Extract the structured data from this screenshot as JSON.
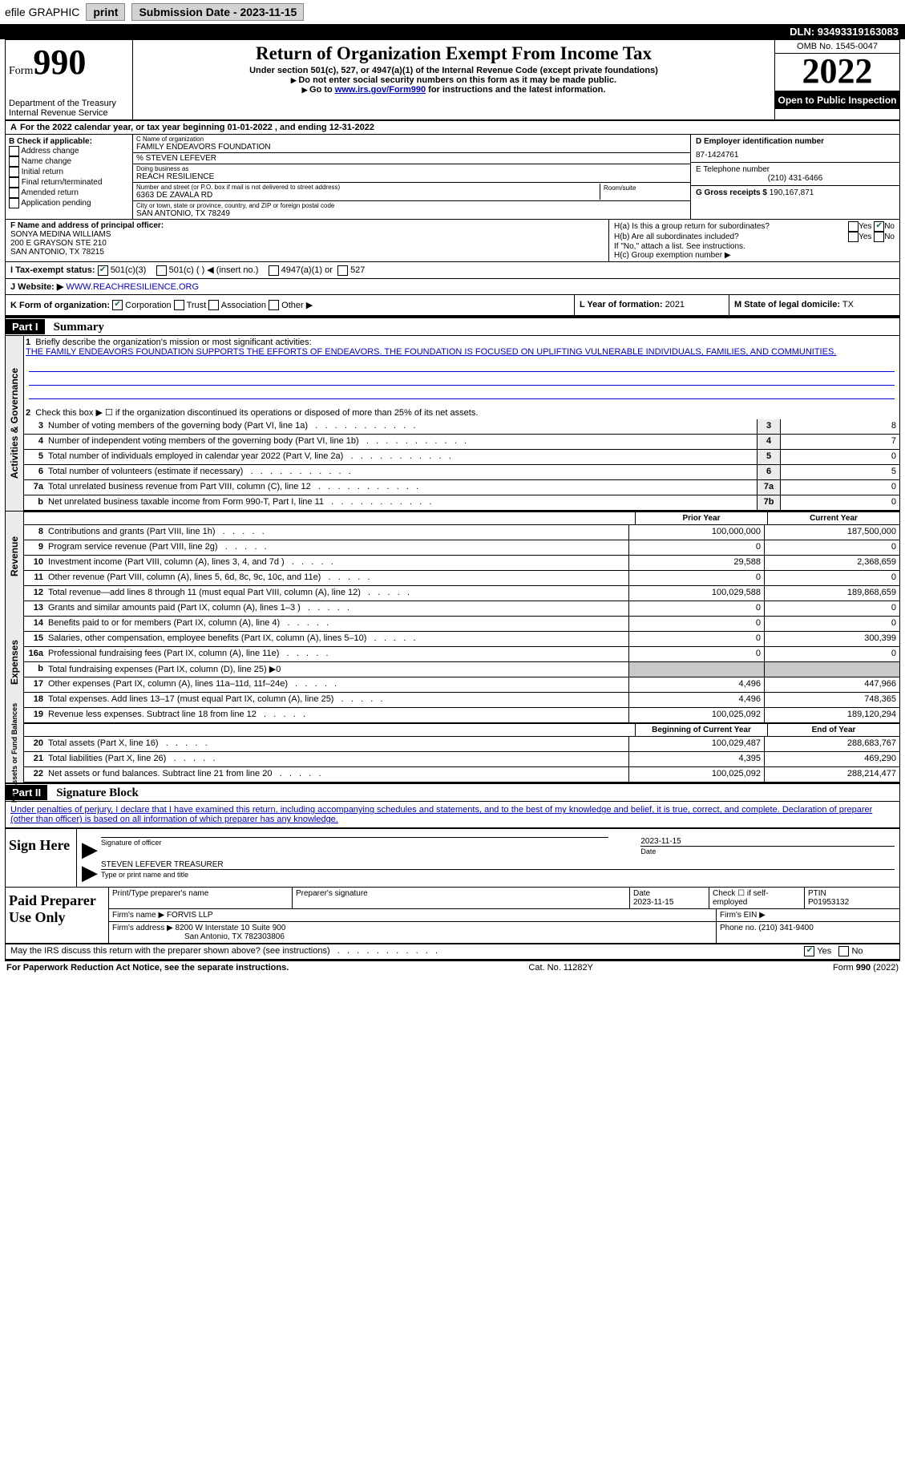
{
  "topbar": {
    "efile": "efile GRAPHIC",
    "print": "print",
    "submission": "Submission Date - 2023-11-15",
    "dln": "DLN: 93493319163083"
  },
  "header": {
    "form_word": "Form",
    "form_no": "990",
    "title": "Return of Organization Exempt From Income Tax",
    "sub1": "Under section 501(c), 527, or 4947(a)(1) of the Internal Revenue Code (except private foundations)",
    "sub2": "Do not enter social security numbers on this form as it may be made public.",
    "sub3_pre": "Go to ",
    "sub3_link": "www.irs.gov/Form990",
    "sub3_post": " for instructions and the latest information.",
    "dept": "Department of the Treasury\nInternal Revenue Service",
    "omb": "OMB No. 1545-0047",
    "year": "2022",
    "otp": "Open to Public Inspection"
  },
  "a_row": "For the 2022 calendar year, or tax year beginning 01-01-2022    , and ending 12-31-2022",
  "b": {
    "label": "B Check if applicable:",
    "opts": [
      "Address change",
      "Name change",
      "Initial return",
      "Final return/terminated",
      "Amended return",
      "Application pending"
    ]
  },
  "c": {
    "name_lbl": "C Name of organization",
    "name": "FAMILY ENDEAVORS FOUNDATION",
    "care": "% STEVEN LEFEVER",
    "dba_lbl": "Doing business as",
    "dba": "REACH RESILIENCE",
    "addr_lbl": "Number and street (or P.O. box if mail is not delivered to street address)",
    "addr": "6363 DE ZAVALA RD",
    "room_lbl": "Room/suite",
    "city_lbl": "City or town, state or province, country, and ZIP or foreign postal code",
    "city": "SAN ANTONIO, TX  78249"
  },
  "d": {
    "ein_lbl": "D Employer identification number",
    "ein": "87-1424761",
    "tel_lbl": "E Telephone number",
    "tel": "(210) 431-6466",
    "gross_lbl": "G Gross receipts $",
    "gross": "190,167,871"
  },
  "f": {
    "lbl": "F Name and address of principal officer:",
    "name": "SONYA MEDINA WILLIAMS",
    "addr1": "200 E GRAYSON STE 210",
    "addr2": "SAN ANTONIO, TX  78215"
  },
  "h": {
    "a_lbl": "H(a)  Is this a group return for subordinates?",
    "b_lbl": "H(b)  Are all subordinates included?",
    "note": "If \"No,\" attach a list. See instructions.",
    "c_lbl": "H(c)  Group exemption number ▶"
  },
  "i": {
    "lbl": "I   Tax-exempt status:",
    "o1": "501(c)(3)",
    "o2": "501(c) (  ) ◀ (insert no.)",
    "o3": "4947(a)(1) or",
    "o4": "527"
  },
  "j": {
    "lbl": "J   Website: ▶",
    "val": "WWW.REACHRESILIENCE.ORG"
  },
  "k": {
    "lbl": "K Form of organization:",
    "corp": "Corporation",
    "trust": "Trust",
    "assoc": "Association",
    "other": "Other ▶",
    "l_lbl": "L Year of formation:",
    "l_val": "2021",
    "m_lbl": "M State of legal domicile:",
    "m_val": "TX"
  },
  "part1": {
    "hdr": "Part I",
    "title": "Summary",
    "l1_lbl": "Briefly describe the organization's mission or most significant activities:",
    "l1_txt": "THE FAMILY ENDEAVORS FOUNDATION SUPPORTS THE EFFORTS OF ENDEAVORS. THE FOUNDATION IS FOCUSED ON UPLIFTING VULNERABLE INDIVIDUALS, FAMILIES, AND COMMUNITIES.",
    "l2": "Check this box ▶ ☐ if the organization discontinued its operations or disposed of more than 25% of its net assets.",
    "rows_a": [
      {
        "n": "3",
        "t": "Number of voting members of the governing body (Part VI, line 1a)",
        "box": "3",
        "v": "8"
      },
      {
        "n": "4",
        "t": "Number of independent voting members of the governing body (Part VI, line 1b)",
        "box": "4",
        "v": "7"
      },
      {
        "n": "5",
        "t": "Total number of individuals employed in calendar year 2022 (Part V, line 2a)",
        "box": "5",
        "v": "0"
      },
      {
        "n": "6",
        "t": "Total number of volunteers (estimate if necessary)",
        "box": "6",
        "v": "5"
      },
      {
        "n": "7a",
        "t": "Total unrelated business revenue from Part VIII, column (C), line 12",
        "box": "7a",
        "v": "0"
      },
      {
        "n": "b",
        "t": "Net unrelated business taxable income from Form 990-T, Part I, line 11",
        "box": "7b",
        "v": "0"
      }
    ],
    "hdr_prior": "Prior Year",
    "hdr_curr": "Current Year",
    "rev": [
      {
        "n": "8",
        "t": "Contributions and grants (Part VIII, line 1h)",
        "p": "100,000,000",
        "c": "187,500,000"
      },
      {
        "n": "9",
        "t": "Program service revenue (Part VIII, line 2g)",
        "p": "0",
        "c": "0"
      },
      {
        "n": "10",
        "t": "Investment income (Part VIII, column (A), lines 3, 4, and 7d )",
        "p": "29,588",
        "c": "2,368,659"
      },
      {
        "n": "11",
        "t": "Other revenue (Part VIII, column (A), lines 5, 6d, 8c, 9c, 10c, and 11e)",
        "p": "0",
        "c": "0"
      },
      {
        "n": "12",
        "t": "Total revenue—add lines 8 through 11 (must equal Part VIII, column (A), line 12)",
        "p": "100,029,588",
        "c": "189,868,659"
      }
    ],
    "exp": [
      {
        "n": "13",
        "t": "Grants and similar amounts paid (Part IX, column (A), lines 1–3 )",
        "p": "0",
        "c": "0"
      },
      {
        "n": "14",
        "t": "Benefits paid to or for members (Part IX, column (A), line 4)",
        "p": "0",
        "c": "0"
      },
      {
        "n": "15",
        "t": "Salaries, other compensation, employee benefits (Part IX, column (A), lines 5–10)",
        "p": "0",
        "c": "300,399"
      },
      {
        "n": "16a",
        "t": "Professional fundraising fees (Part IX, column (A), line 11e)",
        "p": "0",
        "c": "0"
      },
      {
        "n": "b",
        "t": "Total fundraising expenses (Part IX, column (D), line 25) ▶0",
        "gray": true
      },
      {
        "n": "17",
        "t": "Other expenses (Part IX, column (A), lines 11a–11d, 11f–24e)",
        "p": "4,496",
        "c": "447,966"
      },
      {
        "n": "18",
        "t": "Total expenses. Add lines 13–17 (must equal Part IX, column (A), line 25)",
        "p": "4,496",
        "c": "748,365"
      },
      {
        "n": "19",
        "t": "Revenue less expenses. Subtract line 18 from line 12",
        "p": "100,025,092",
        "c": "189,120,294"
      }
    ],
    "hdr_beg": "Beginning of Current Year",
    "hdr_end": "End of Year",
    "net": [
      {
        "n": "20",
        "t": "Total assets (Part X, line 16)",
        "p": "100,029,487",
        "c": "288,683,767"
      },
      {
        "n": "21",
        "t": "Total liabilities (Part X, line 26)",
        "p": "4,395",
        "c": "469,290"
      },
      {
        "n": "22",
        "t": "Net assets or fund balances. Subtract line 21 from line 20",
        "p": "100,025,092",
        "c": "288,214,477"
      }
    ],
    "vtab_ag": "Activities & Governance",
    "vtab_rev": "Revenue",
    "vtab_exp": "Expenses",
    "vtab_net": "Net Assets or Fund Balances"
  },
  "part2": {
    "hdr": "Part II",
    "title": "Signature Block",
    "decl": "Under penalties of perjury, I declare that I have examined this return, including accompanying schedules and statements, and to the best of my knowledge and belief, it is true, correct, and complete. Declaration of preparer (other than officer) is based on all information of which preparer has any knowledge.",
    "sign_here": "Sign Here",
    "sig_of_officer": "Signature of officer",
    "sig_date": "2023-11-15",
    "date_lbl": "Date",
    "officer": "STEVEN LEFEVER  TREASURER",
    "type_name": "Type or print name and title",
    "paid": "Paid Preparer Use Only",
    "p_name_lbl": "Print/Type preparer's name",
    "p_sig_lbl": "Preparer's signature",
    "p_date_lbl": "Date",
    "p_date": "2023-11-15",
    "p_check": "Check ☐ if self-employed",
    "ptin_lbl": "PTIN",
    "ptin": "P01953132",
    "firm_name_lbl": "Firm's name    ▶",
    "firm_name": "FORVIS LLP",
    "firm_ein_lbl": "Firm's EIN ▶",
    "firm_addr_lbl": "Firm's address ▶",
    "firm_addr1": "8200 W Interstate 10 Suite 900",
    "firm_addr2": "San Antonio, TX  782303806",
    "phone_lbl": "Phone no.",
    "phone": "(210) 341-9400",
    "discuss": "May the IRS discuss this return with the preparer shown above? (see instructions)"
  },
  "footer": {
    "pra": "For Paperwork Reduction Act Notice, see the separate instructions.",
    "cat": "Cat. No. 11282Y",
    "form": "Form 990 (2022)"
  }
}
